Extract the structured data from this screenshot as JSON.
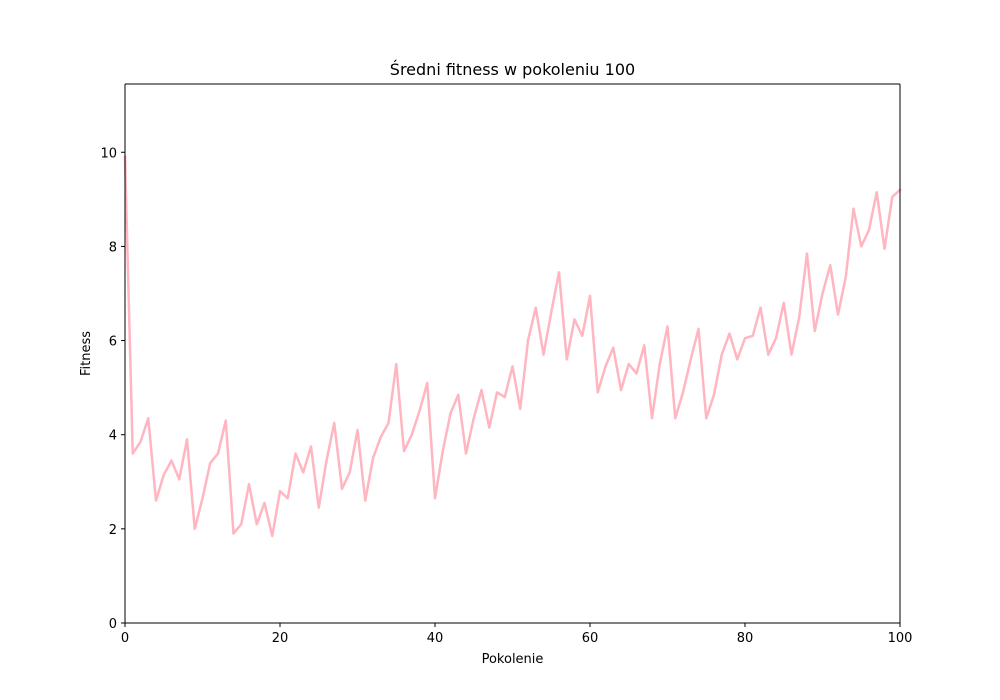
{
  "chart_data": {
    "type": "line",
    "title": "Średni fitness w pokoleniu 100",
    "xlabel": "Pokolenie",
    "ylabel": "Fitness",
    "xlim": [
      0,
      100
    ],
    "ylim": [
      0,
      11.45
    ],
    "xticks": [
      0,
      20,
      40,
      60,
      80,
      100
    ],
    "yticks": [
      0,
      2,
      4,
      6,
      8,
      10
    ],
    "grid": false,
    "series": [
      {
        "color": "#ffb6c1",
        "x": [
          0,
          1,
          2,
          3,
          4,
          5,
          6,
          7,
          8,
          9,
          10,
          11,
          12,
          13,
          14,
          15,
          16,
          17,
          18,
          19,
          20,
          21,
          22,
          23,
          24,
          25,
          26,
          27,
          28,
          29,
          30,
          31,
          32,
          33,
          34,
          35,
          36,
          37,
          38,
          39,
          40,
          41,
          42,
          43,
          44,
          45,
          46,
          47,
          48,
          49,
          50,
          51,
          52,
          53,
          54,
          55,
          56,
          57,
          58,
          59,
          60,
          61,
          62,
          63,
          64,
          65,
          66,
          67,
          68,
          69,
          70,
          71,
          72,
          73,
          74,
          75,
          76,
          77,
          78,
          79,
          80,
          81,
          82,
          83,
          84,
          85,
          86,
          87,
          88,
          89,
          90,
          91,
          92,
          93,
          94,
          95,
          96,
          97,
          98,
          99,
          100
        ],
        "values": [
          9.9,
          3.6,
          3.85,
          4.35,
          2.6,
          3.15,
          3.45,
          3.05,
          3.9,
          2.0,
          2.65,
          3.4,
          3.6,
          4.3,
          1.9,
          2.1,
          2.95,
          2.1,
          2.55,
          1.85,
          2.8,
          2.65,
          3.6,
          3.2,
          3.75,
          2.45,
          3.45,
          4.25,
          2.85,
          3.2,
          4.1,
          2.6,
          3.5,
          3.95,
          4.25,
          5.5,
          3.65,
          4.0,
          4.5,
          5.1,
          2.65,
          3.65,
          4.45,
          4.85,
          3.6,
          4.35,
          4.95,
          4.15,
          4.9,
          4.8,
          5.45,
          4.55,
          6.0,
          6.7,
          5.7,
          6.6,
          7.45,
          5.6,
          6.45,
          6.1,
          6.95,
          4.9,
          5.45,
          5.85,
          4.95,
          5.5,
          5.3,
          5.9,
          4.35,
          5.5,
          6.3,
          4.35,
          4.9,
          5.6,
          6.25,
          4.35,
          4.85,
          5.7,
          6.15,
          5.6,
          6.05,
          6.1,
          6.7,
          5.7,
          6.05,
          6.8,
          5.7,
          6.5,
          7.85,
          6.2,
          7.0,
          7.6,
          6.55,
          7.35,
          8.8,
          8.0,
          8.35,
          9.15,
          7.95,
          9.05,
          9.2
        ]
      }
    ]
  }
}
